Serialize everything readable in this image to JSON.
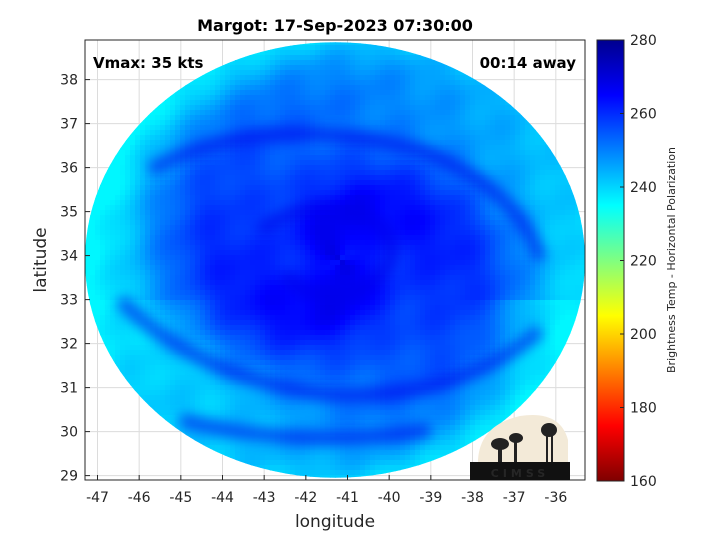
{
  "chart_data": {
    "type": "heatmap",
    "title": "Margot: 17-Sep-2023 07:30:00",
    "annotations": {
      "top_left": "Vmax: 35 kts",
      "top_right": "00:14 away"
    },
    "xlabel": "longitude",
    "ylabel": "latitude",
    "xlim": [
      -47.3,
      -35.3
    ],
    "ylim": [
      28.9,
      38.9
    ],
    "xticks": [
      -47,
      -46,
      -45,
      -44,
      -43,
      -42,
      -41,
      -40,
      -39,
      -38,
      -37,
      -36
    ],
    "yticks": [
      29,
      30,
      31,
      32,
      33,
      34,
      35,
      36,
      37,
      38
    ],
    "grid": true,
    "colorbar": {
      "label": "Brightness Temp - Horizontal Polarization",
      "ticks": [
        160,
        180,
        200,
        220,
        240,
        260,
        280
      ],
      "range": [
        160,
        280
      ],
      "colormap": [
        "#7f0000",
        "#ff0000",
        "#ff8000",
        "#ffff00",
        "#80ff80",
        "#00ffff",
        "#0080ff",
        "#0000ff",
        "#00008f"
      ]
    },
    "field": {
      "center": [
        -41.2,
        33.9
      ],
      "footprint_center": [
        -41.3,
        33.9
      ],
      "footprint_radius_deg": [
        6.0,
        4.95
      ],
      "center_value": 266,
      "edge_value": 240,
      "min_value": 236,
      "max_value": 270
    },
    "logo": "CIMSS"
  }
}
